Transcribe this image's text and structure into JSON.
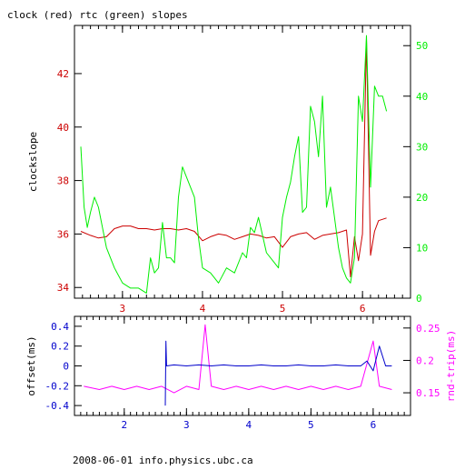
{
  "title": "clock (red) rtc (green) slopes",
  "footer": "2008-06-01 info.physics.ubc.ca",
  "colors": {
    "red": "#cc0000",
    "green": "#00ee00",
    "blue": "#0000cc",
    "magenta": "#ff00ff",
    "frame": "#000000"
  },
  "chart_data": [
    {
      "type": "line",
      "title": "clock (red) rtc (green) slopes",
      "xlim": [
        2.4,
        6.6
      ],
      "x_ticks": [
        3,
        4,
        5,
        6
      ],
      "x_tick_labels": [
        "3",
        "4",
        "5",
        "6"
      ],
      "ylabel": "clockslope",
      "ylim": [
        33.6,
        43.8
      ],
      "y_ticks": [
        34,
        36,
        38,
        40,
        42
      ],
      "y_tick_labels": [
        "34",
        "36",
        "38",
        "40",
        "42"
      ],
      "y2lim": [
        0,
        54
      ],
      "y2_ticks": [
        0,
        10,
        20,
        30,
        40,
        50
      ],
      "y2_tick_labels": [
        "0",
        "10",
        "20",
        "30",
        "40",
        "50"
      ],
      "series": [
        {
          "color": "red",
          "axis": "left",
          "x": [
            2.48,
            2.6,
            2.7,
            2.8,
            2.9,
            3.0,
            3.1,
            3.2,
            3.3,
            3.4,
            3.5,
            3.6,
            3.7,
            3.8,
            3.9,
            4.0,
            4.1,
            4.2,
            4.3,
            4.4,
            4.5,
            4.6,
            4.7,
            4.8,
            4.9,
            5.0,
            5.1,
            5.2,
            5.3,
            5.4,
            5.5,
            5.6,
            5.7,
            5.8,
            5.85,
            5.9,
            5.95,
            6.0,
            6.05,
            6.1,
            6.15,
            6.2,
            6.3
          ],
          "y": [
            36.1,
            35.95,
            35.85,
            35.9,
            36.2,
            36.3,
            36.3,
            36.2,
            36.2,
            36.15,
            36.2,
            36.2,
            36.15,
            36.2,
            36.1,
            35.75,
            35.9,
            36.0,
            35.95,
            35.8,
            35.9,
            36.0,
            35.95,
            35.85,
            35.9,
            35.5,
            35.9,
            36.0,
            36.05,
            35.8,
            35.95,
            36.0,
            36.05,
            36.15,
            34.4,
            35.9,
            35.0,
            36.0,
            43.3,
            35.2,
            36.1,
            36.5,
            36.6
          ]
        },
        {
          "color": "green",
          "axis": "right",
          "x": [
            2.48,
            2.52,
            2.56,
            2.6,
            2.65,
            2.7,
            2.75,
            2.8,
            2.85,
            2.9,
            3.0,
            3.1,
            3.2,
            3.3,
            3.35,
            3.4,
            3.45,
            3.5,
            3.55,
            3.6,
            3.65,
            3.7,
            3.75,
            3.8,
            3.85,
            3.9,
            3.95,
            4.0,
            4.1,
            4.2,
            4.3,
            4.4,
            4.5,
            4.55,
            4.6,
            4.65,
            4.7,
            4.8,
            4.9,
            4.95,
            5.0,
            5.05,
            5.1,
            5.15,
            5.2,
            5.25,
            5.3,
            5.35,
            5.4,
            5.45,
            5.5,
            5.55,
            5.6,
            5.65,
            5.7,
            5.75,
            5.8,
            5.85,
            5.9,
            5.95,
            6.0,
            6.05,
            6.1,
            6.15,
            6.2,
            6.25,
            6.3
          ],
          "y": [
            30,
            18,
            14,
            17,
            20,
            18,
            14,
            10,
            8,
            6,
            3,
            2,
            2,
            1,
            8,
            5,
            6,
            15,
            8,
            8,
            7,
            20,
            26,
            24,
            22,
            20,
            12,
            6,
            5,
            3,
            6,
            5,
            9,
            8,
            14,
            13,
            16,
            9,
            7,
            6,
            16,
            20,
            23,
            28,
            32,
            17,
            18,
            38,
            35,
            28,
            40,
            18,
            22,
            16,
            10,
            6,
            4,
            3,
            8,
            40,
            35,
            52,
            22,
            42,
            40,
            40,
            37
          ]
        }
      ]
    },
    {
      "type": "line",
      "xlim": [
        1.2,
        6.6
      ],
      "x_ticks": [
        2,
        3,
        4,
        5,
        6
      ],
      "x_tick_labels": [
        "2",
        "3",
        "4",
        "5",
        "6"
      ],
      "ylabel": "offset(ms)",
      "ylim": [
        -0.5,
        0.5
      ],
      "y_ticks": [
        -0.4,
        -0.2,
        0,
        0.2,
        0.4
      ],
      "y_tick_labels": [
        "-0.4",
        "-0.2",
        "0",
        "0.2",
        "0.4"
      ],
      "y2label": "rnd-trip(ms)",
      "y2lim": [
        0.115,
        0.268
      ],
      "y2_ticks": [
        0.15,
        0.2,
        0.25
      ],
      "y2_tick_labels": [
        "0.15",
        "0.2",
        "0.25"
      ],
      "series": [
        {
          "color": "magenta",
          "axis": "right",
          "x": [
            1.35,
            1.6,
            1.8,
            2.0,
            2.2,
            2.4,
            2.6,
            2.8,
            3.0,
            3.2,
            3.3,
            3.4,
            3.6,
            3.8,
            4.0,
            4.2,
            4.4,
            4.6,
            4.8,
            5.0,
            5.2,
            5.4,
            5.6,
            5.8,
            6.0,
            6.1,
            6.3
          ],
          "y": [
            0.16,
            0.155,
            0.16,
            0.155,
            0.16,
            0.155,
            0.16,
            0.15,
            0.16,
            0.155,
            0.255,
            0.16,
            0.155,
            0.16,
            0.155,
            0.16,
            0.155,
            0.16,
            0.155,
            0.16,
            0.155,
            0.16,
            0.155,
            0.16,
            0.23,
            0.16,
            0.155
          ]
        },
        {
          "color": "blue",
          "axis": "left",
          "x": [
            2.66,
            2.67,
            2.68,
            2.8,
            3.0,
            3.2,
            3.4,
            3.6,
            3.8,
            4.0,
            4.2,
            4.4,
            4.6,
            4.8,
            5.0,
            5.2,
            5.4,
            5.6,
            5.8,
            5.9,
            6.0,
            6.1,
            6.2,
            6.3
          ],
          "y": [
            -0.4,
            0.25,
            0.0,
            0.01,
            0.0,
            0.01,
            0.0,
            0.01,
            0.0,
            0.0,
            0.01,
            0.0,
            0.0,
            0.01,
            0.0,
            0.0,
            0.01,
            0.0,
            0.0,
            0.05,
            -0.05,
            0.2,
            0.0,
            0.0
          ]
        }
      ]
    }
  ]
}
